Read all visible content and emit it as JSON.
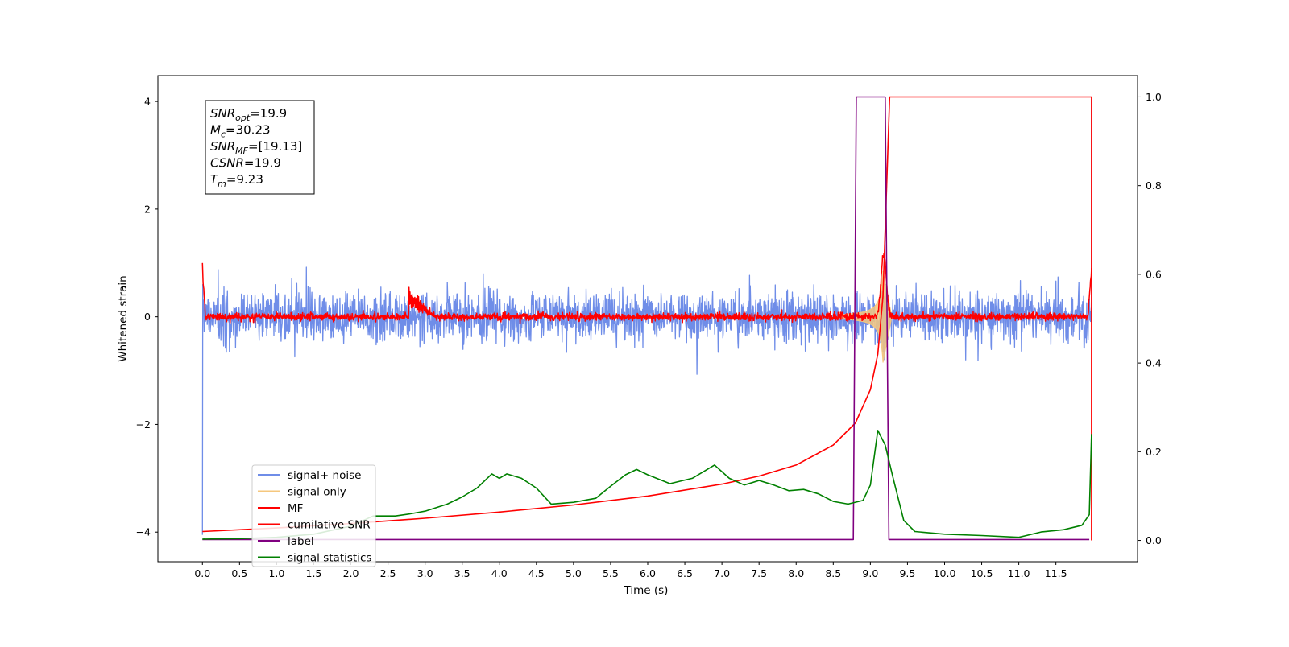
{
  "chart_data": {
    "type": "line",
    "title": "",
    "xlabel": "Time (s)",
    "ylabel": "Whitened strain",
    "xlim": [
      -0.6,
      12.6
    ],
    "ylim": [
      -4.55,
      4.48
    ],
    "y2lim": [
      -0.048,
      1.048
    ],
    "x_ticks": [
      0.0,
      0.5,
      1.0,
      1.5,
      2.0,
      2.5,
      3.0,
      3.5,
      4.0,
      4.5,
      5.0,
      5.5,
      6.0,
      6.5,
      7.0,
      7.5,
      8.0,
      8.5,
      9.0,
      9.5,
      10.0,
      10.5,
      11.0,
      11.5
    ],
    "x_tick_labels": [
      "0.0",
      "0.5",
      "1.0",
      "1.5",
      "2.0",
      "2.5",
      "3.0",
      "3.5",
      "4.0",
      "4.5",
      "5.0",
      "5.5",
      "6.0",
      "6.5",
      "7.0",
      "7.5",
      "8.0",
      "8.5",
      "9.0",
      "9.5",
      "10.0",
      "10.5",
      "11.0",
      "11.5"
    ],
    "y_ticks": [
      -4,
      -2,
      0,
      2,
      4
    ],
    "y_tick_labels": [
      "−4",
      "−2",
      "0",
      "2",
      "4"
    ],
    "y2_ticks": [
      0.0,
      0.2,
      0.4,
      0.6,
      0.8,
      1.0
    ],
    "y2_tick_labels": [
      "0.0",
      "0.2",
      "0.4",
      "0.6",
      "0.8",
      "1.0"
    ],
    "grid": false,
    "legend_position": "lower-left",
    "series": [
      {
        "name": "signal+ noise",
        "color": "#6f8de8",
        "axis": "left",
        "kind": "noise",
        "amplitude": 0.55,
        "range": [
          0.0,
          11.98
        ]
      },
      {
        "name": "signal only",
        "color": "#f5c77e",
        "axis": "left",
        "kind": "chirp",
        "peak": 0.85,
        "merger_time": 9.17
      },
      {
        "name": "MF",
        "color": "#ff0000",
        "axis": "left",
        "kind": "matched-filter",
        "baseline_amplitude": 0.08,
        "start_value": 1.0,
        "bump": {
          "x": 2.78,
          "y": 0.5
        },
        "end_value": 0.9
      },
      {
        "name": "cumilative SNR",
        "color": "#ff0000",
        "axis": "right",
        "points": [
          [
            0.0,
            0.02
          ],
          [
            1.0,
            0.028
          ],
          [
            2.0,
            0.038
          ],
          [
            3.0,
            0.05
          ],
          [
            4.0,
            0.064
          ],
          [
            5.0,
            0.08
          ],
          [
            6.0,
            0.1
          ],
          [
            7.0,
            0.127
          ],
          [
            7.5,
            0.145
          ],
          [
            8.0,
            0.17
          ],
          [
            8.5,
            0.215
          ],
          [
            8.8,
            0.265
          ],
          [
            9.0,
            0.34
          ],
          [
            9.1,
            0.42
          ],
          [
            9.17,
            0.55
          ],
          [
            9.22,
            0.8
          ],
          [
            9.26,
            1.0
          ],
          [
            11.98,
            1.0
          ],
          [
            11.98,
            0.0
          ]
        ]
      },
      {
        "name": "label",
        "color": "#800080",
        "axis": "right",
        "points": [
          [
            0.0,
            0.002
          ],
          [
            8.77,
            0.002
          ],
          [
            8.81,
            1.0
          ],
          [
            9.2,
            1.0
          ],
          [
            9.25,
            0.002
          ],
          [
            11.95,
            0.002
          ]
        ]
      },
      {
        "name": "signal statistics",
        "color": "#008000",
        "axis": "right",
        "points": [
          [
            0.0,
            0.003
          ],
          [
            0.5,
            0.004
          ],
          [
            1.0,
            0.007
          ],
          [
            1.5,
            0.014
          ],
          [
            2.0,
            0.032
          ],
          [
            2.3,
            0.055
          ],
          [
            2.6,
            0.055
          ],
          [
            2.8,
            0.06
          ],
          [
            3.0,
            0.066
          ],
          [
            3.3,
            0.082
          ],
          [
            3.5,
            0.098
          ],
          [
            3.7,
            0.118
          ],
          [
            3.9,
            0.15
          ],
          [
            4.0,
            0.14
          ],
          [
            4.1,
            0.15
          ],
          [
            4.3,
            0.14
          ],
          [
            4.5,
            0.118
          ],
          [
            4.7,
            0.082
          ],
          [
            5.0,
            0.086
          ],
          [
            5.3,
            0.095
          ],
          [
            5.5,
            0.122
          ],
          [
            5.7,
            0.148
          ],
          [
            5.85,
            0.16
          ],
          [
            6.0,
            0.148
          ],
          [
            6.3,
            0.128
          ],
          [
            6.6,
            0.14
          ],
          [
            6.9,
            0.17
          ],
          [
            7.1,
            0.14
          ],
          [
            7.3,
            0.125
          ],
          [
            7.5,
            0.135
          ],
          [
            7.7,
            0.125
          ],
          [
            7.9,
            0.112
          ],
          [
            8.1,
            0.115
          ],
          [
            8.3,
            0.105
          ],
          [
            8.5,
            0.088
          ],
          [
            8.7,
            0.082
          ],
          [
            8.9,
            0.09
          ],
          [
            9.0,
            0.125
          ],
          [
            9.1,
            0.248
          ],
          [
            9.2,
            0.215
          ],
          [
            9.3,
            0.145
          ],
          [
            9.45,
            0.045
          ],
          [
            9.6,
            0.02
          ],
          [
            10.0,
            0.014
          ],
          [
            10.5,
            0.011
          ],
          [
            11.0,
            0.007
          ],
          [
            11.3,
            0.019
          ],
          [
            11.6,
            0.024
          ],
          [
            11.85,
            0.034
          ],
          [
            11.95,
            0.058
          ],
          [
            11.98,
            0.24
          ]
        ]
      }
    ]
  },
  "stats_box": {
    "lines": [
      {
        "main": "SNR",
        "sub": "opt",
        "rest": "=19.9"
      },
      {
        "main": "M",
        "sub": "c",
        "rest": "=30.23"
      },
      {
        "main": "SNR",
        "sub": "MF",
        "rest": "=[19.13]"
      },
      {
        "main": "CSNR",
        "sub": "",
        "rest": "=19.9"
      },
      {
        "main": "T",
        "sub": "m",
        "rest": "=9.23"
      }
    ]
  }
}
